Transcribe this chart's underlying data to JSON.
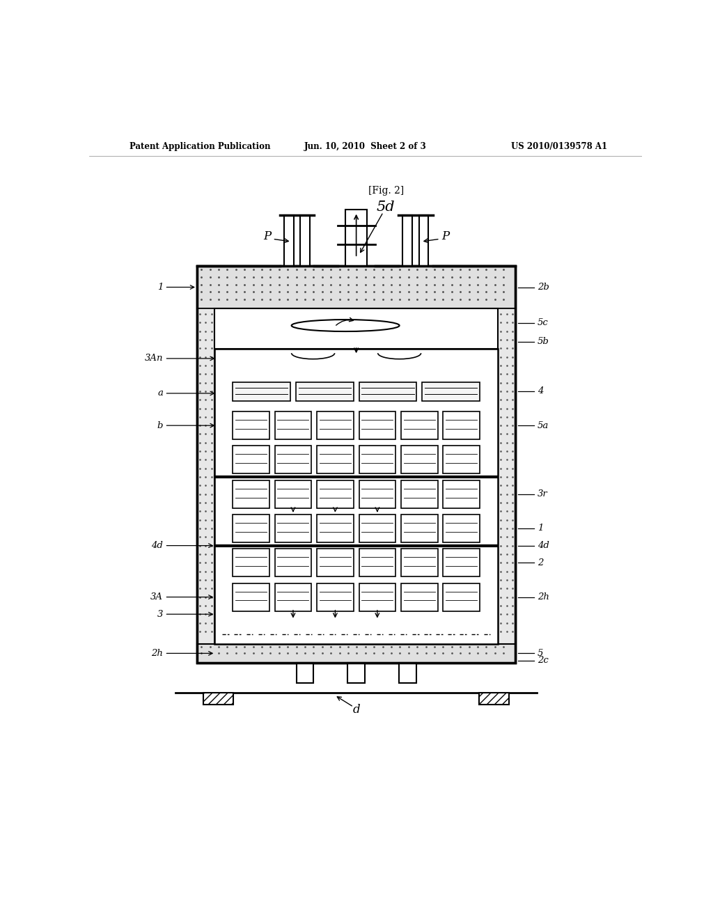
{
  "bg_color": "#ffffff",
  "header_left": "Patent Application Publication",
  "header_center": "Jun. 10, 2010  Sheet 2 of 3",
  "header_right": "US 2010/0139578 A1",
  "fig_label": "[Fig. 2]",
  "fig_number": "5d",
  "label_p": "P",
  "label_d": "d",
  "label_1_left": "1",
  "label_3An": "3An",
  "label_a": "a",
  "label_b": "b",
  "label_4d_left": "4d",
  "label_3A": "3A",
  "label_3": "3",
  "label_2h_left": "2h",
  "right_labels": [
    "2b",
    "5c",
    "5b",
    "4",
    "5a",
    "3r",
    "4d",
    "1",
    "2",
    "2h",
    "5",
    "2c"
  ]
}
